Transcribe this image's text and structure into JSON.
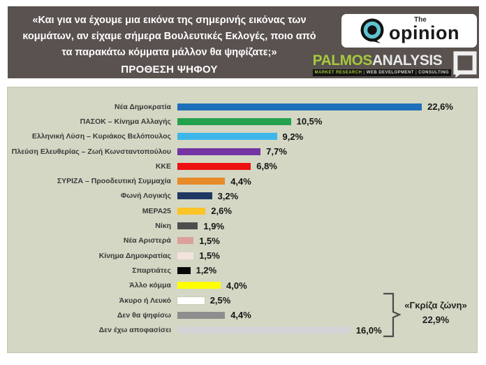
{
  "header": {
    "question_lines": [
      "«Και για να έχουμε μια εικόνα της σημερινής εικόνας των",
      "κομμάτων, αν είχαμε σήμερα Βουλευτικές Εκλογές, ποιο από",
      "τα παρακάτω κόμματα μάλλον θα ψηφίζατε;»"
    ],
    "subtitle": "ΠΡΟΘΕΣΗ ΨΗΦΟΥ",
    "background_color": "#59524f"
  },
  "logos": {
    "opinion": {
      "prefix": "The",
      "name": "opinion",
      "ring_color": "#5fc4cf"
    },
    "palmos": {
      "primary": "PALMOS",
      "secondary": "ANALYSIS",
      "tagline_items": [
        "MARKET RESEARCH",
        "WEB DEVELOPMENT",
        "CONSULTING"
      ],
      "green": "#a5c73e"
    }
  },
  "chart_data": {
    "type": "bar",
    "orientation": "horizontal",
    "title": "ΠΡΟΘΕΣΗ ΨΗΦΟΥ",
    "grid": false,
    "legend": "none",
    "xlim": [
      0,
      24
    ],
    "categories": [
      "Νέα Δημοκρατία",
      "ΠΑΣΟΚ – Κίνημα Αλλαγής",
      "Ελληνική Λύση – Κυριάκος Βελόπουλος",
      "Πλεύση Ελευθερίας – Ζωή Κωνσταντοπούλου",
      "ΚΚΕ",
      "ΣΥΡΙΖΑ – Προοδευτική Συμμαχία",
      "Φωνή Λογικής",
      "ΜΕΡΑ25",
      "Νίκη",
      "Νέα Αριστερά",
      "Κίνημα Δημοκρατίας",
      "Σπαρτιάτες",
      "Άλλο κόμμα",
      "Άκυρο ή Λευκό",
      "Δεν θα ψηφίσω",
      "Δεν έχω αποφασίσει"
    ],
    "values": [
      22.6,
      10.5,
      9.2,
      7.7,
      6.8,
      4.4,
      3.2,
      2.6,
      1.9,
      1.5,
      1.5,
      1.2,
      4.0,
      2.5,
      4.4,
      16.0
    ],
    "value_labels": [
      "22,6%",
      "10,5%",
      "9,2%",
      "7,7%",
      "6,8%",
      "4,4%",
      "3,2%",
      "2,6%",
      "1,9%",
      "1,5%",
      "1,5%",
      "1,2%",
      "4,0%",
      "2,5%",
      "4,4%",
      "16,0%"
    ],
    "colors": [
      "#1e6fb9",
      "#23a24e",
      "#3db7ea",
      "#7434a4",
      "#ee1111",
      "#e78b28",
      "#1f3864",
      "#fdc428",
      "#4e4e4e",
      "#dba19b",
      "#f3e3df",
      "#070707",
      "#ffff00",
      "#ffffff",
      "#8e8e8e",
      "#d5d5d9"
    ],
    "annotation": {
      "label": "«Γκρίζα ζώνη»",
      "value": "22,9%"
    }
  }
}
